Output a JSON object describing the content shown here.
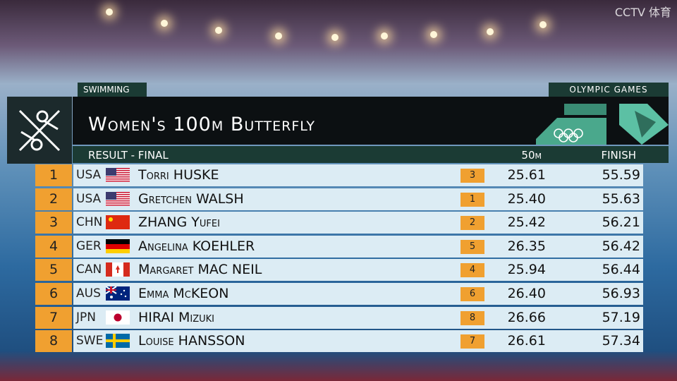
{
  "watermark": "CCTV 体育",
  "header": {
    "sport": "SWIMMING",
    "games": "OLYMPIC GAMES",
    "title": "Women's 100m Butterfly",
    "phase": "RESULT - FINAL",
    "columns": [
      "50m",
      "FINISH"
    ]
  },
  "table": {
    "rows": [
      [
        1,
        "USA",
        "Torri HUSKE",
        3,
        "25.61",
        "55.59"
      ],
      [
        2,
        "USA",
        "Gretchen WALSH",
        1,
        "25.40",
        "55.63"
      ],
      [
        3,
        "CHN",
        "ZHANG Yufei",
        2,
        "25.42",
        "56.21"
      ],
      [
        4,
        "GER",
        "Angelina KOEHLER",
        5,
        "26.35",
        "56.42"
      ],
      [
        5,
        "CAN",
        "Margaret MAC NEIL",
        4,
        "25.94",
        "56.44"
      ],
      [
        6,
        "AUS",
        "Emma McKEON",
        6,
        "26.40",
        "56.93"
      ],
      [
        7,
        "JPN",
        "HIRAI Mizuki",
        8,
        "26.66",
        "57.19"
      ],
      [
        8,
        "SWE",
        "Louise HANSSON",
        7,
        "26.61",
        "57.34"
      ]
    ]
  }
}
